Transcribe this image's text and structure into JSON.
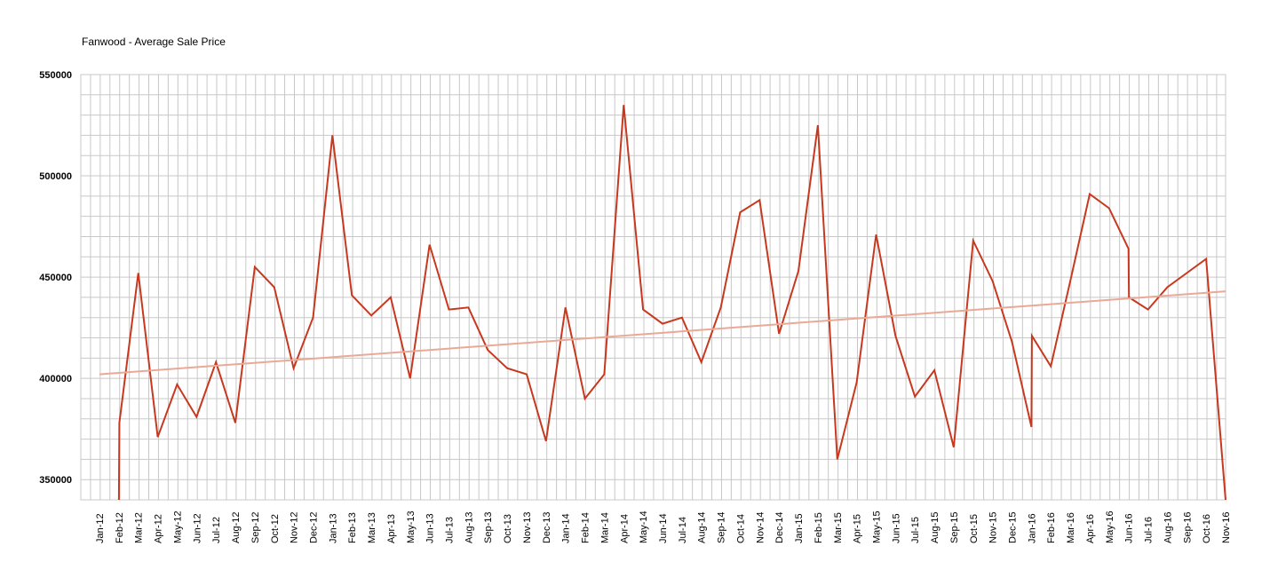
{
  "chart_data": {
    "type": "line",
    "title": "Fanwood - Average Sale Price",
    "xlabel": "",
    "ylabel": "",
    "ylim": [
      340000,
      550000
    ],
    "yticks": [
      350000,
      400000,
      450000,
      500000,
      550000
    ],
    "categories": [
      "Jan-12",
      "Feb-12",
      "Mar-12",
      "Apr-12",
      "May-12",
      "Jun-12",
      "Jul-12",
      "Aug-12",
      "Sep-12",
      "Oct-12",
      "Nov-12",
      "Dec-12",
      "Jan-13",
      "Feb-13",
      "Mar-13",
      "Apr-13",
      "May-13",
      "Jun-13",
      "Jul-13",
      "Aug-13",
      "Sep-13",
      "Oct-13",
      "Nov-13",
      "Dec-13",
      "Jan-14",
      "Feb-14",
      "Mar-14",
      "Apr-14",
      "May-14",
      "Jun-14",
      "Jul-14",
      "Aug-14",
      "Sep-14",
      "Oct-14",
      "Nov-14",
      "Dec-14",
      "Jan-15",
      "Feb-15",
      "Mar-15",
      "Apr-15",
      "May-15",
      "Jun-15",
      "Jul-15",
      "Aug-15",
      "Sep-15",
      "Oct-15",
      "Nov-15",
      "Dec-15",
      "Jan-16",
      "Feb-16",
      "Mar-16",
      "Apr-16",
      "May-16",
      "Jun-16",
      "Jul-16",
      "Aug-16",
      "Sep-16",
      "Oct-16",
      "Nov-16"
    ],
    "grid": true,
    "series": [
      {
        "role": "data",
        "color": "#c8381e",
        "points": [
          [
            "Feb-12",
            340000
          ],
          [
            "Feb-12",
            378000
          ],
          [
            "Mar-12",
            452000
          ],
          [
            "Apr-12",
            371000
          ],
          [
            "May-12",
            397000
          ],
          [
            "Jun-12",
            381000
          ],
          [
            "Jul-12",
            408000
          ],
          [
            "Aug-12",
            378000
          ],
          [
            "Sep-12",
            455000
          ],
          [
            "Oct-12",
            445000
          ],
          [
            "Nov-12",
            405000
          ],
          [
            "Dec-12",
            430000
          ],
          [
            "Jan-13",
            520000
          ],
          [
            "Feb-13",
            441000
          ],
          [
            "Mar-13",
            431000
          ],
          [
            "Apr-13",
            440000
          ],
          [
            "May-13",
            400000
          ],
          [
            "Jun-13",
            466000
          ],
          [
            "Jul-13",
            434000
          ],
          [
            "Aug-13",
            435000
          ],
          [
            "Sep-13",
            414000
          ],
          [
            "Oct-13",
            405000
          ],
          [
            "Nov-13",
            402000
          ],
          [
            "Dec-13",
            369000
          ],
          [
            "Jan-14",
            435000
          ],
          [
            "Feb-14",
            390000
          ],
          [
            "Mar-14",
            402000
          ],
          [
            "Apr-14",
            535000
          ],
          [
            "May-14",
            434000
          ],
          [
            "Jun-14",
            427000
          ],
          [
            "Jul-14",
            430000
          ],
          [
            "Aug-14",
            408000
          ],
          [
            "Sep-14",
            435000
          ],
          [
            "Oct-14",
            482000
          ],
          [
            "Nov-14",
            488000
          ],
          [
            "Dec-14",
            422000
          ],
          [
            "Jan-15",
            453000
          ],
          [
            "Feb-15",
            525000
          ],
          [
            "Mar-15",
            360000
          ],
          [
            "Apr-15",
            398000
          ],
          [
            "May-15",
            471000
          ],
          [
            "Jun-15",
            421000
          ],
          [
            "Jul-15",
            391000
          ],
          [
            "Aug-15",
            404000
          ],
          [
            "Sep-15",
            366000
          ],
          [
            "Oct-15",
            468000
          ],
          [
            "Nov-15",
            448000
          ],
          [
            "Dec-15",
            418000
          ],
          [
            "Jan-16",
            376000
          ],
          [
            "Jan-16",
            421000
          ],
          [
            "Feb-16",
            406000
          ],
          [
            "Mar-16",
            448000
          ],
          [
            "Apr-16",
            491000
          ],
          [
            "May-16",
            484000
          ],
          [
            "Jun-16",
            464000
          ],
          [
            "Jun-16",
            440000
          ],
          [
            "Jul-16",
            434000
          ],
          [
            "Aug-16",
            445000
          ],
          [
            "Sep-16",
            452000
          ],
          [
            "Oct-16",
            459000
          ],
          [
            "Nov-16",
            340000
          ]
        ]
      },
      {
        "role": "trend",
        "color": "#eaa996",
        "points": [
          [
            "Jan-12",
            402000
          ],
          [
            "Nov-16",
            443000
          ]
        ]
      }
    ]
  }
}
